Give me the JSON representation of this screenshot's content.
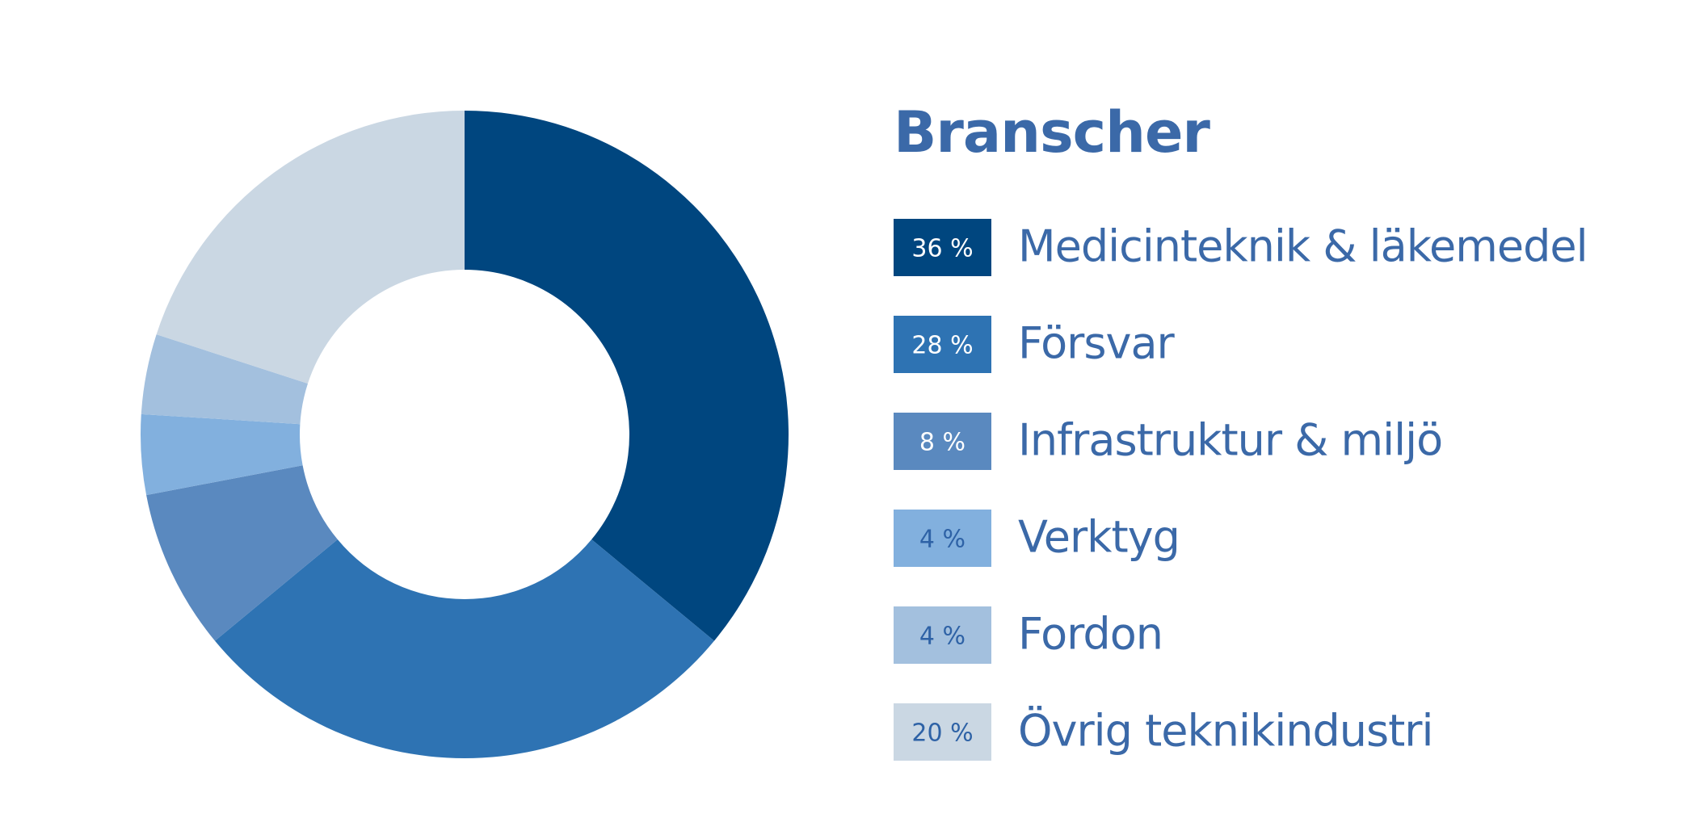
{
  "chart_data": {
    "type": "pie",
    "title": "Branscher",
    "categories": [
      "Medicinteknik & läkemedel",
      "Försvar",
      "Infrastruktur & miljö",
      "Verktyg",
      "Fordon",
      "Övrig teknikindustri"
    ],
    "values": [
      36,
      28,
      8,
      4,
      4,
      20
    ],
    "value_labels": [
      "36 %",
      "28 %",
      "8 %",
      "4 %",
      "4 %",
      "20 %"
    ],
    "colors": [
      "#00467f",
      "#2e73b3",
      "#5a89bf",
      "#82b0de",
      "#a3c0de",
      "#cad7e3"
    ]
  }
}
